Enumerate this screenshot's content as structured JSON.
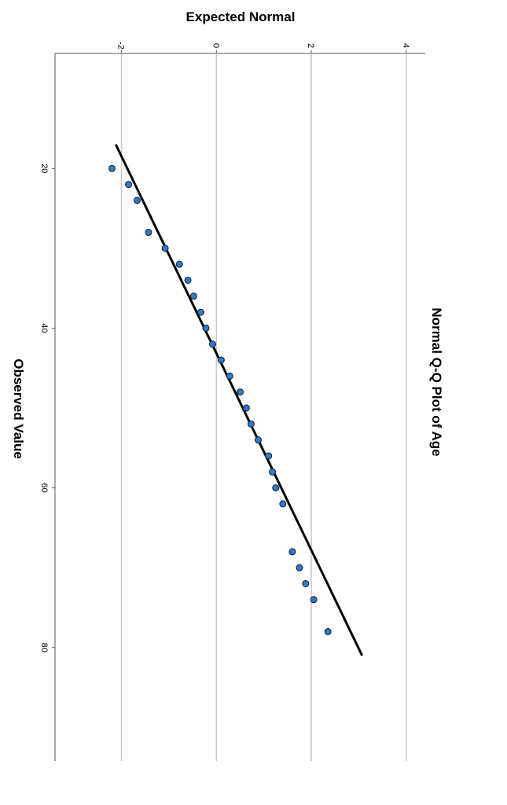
{
  "chart_data": {
    "type": "scatter",
    "title": "Normal Q-Q Plot of Age",
    "xlabel": "Observed Value",
    "ylabel": "Expected Normal",
    "x_ticks": [
      "20",
      "40",
      "60",
      "80"
    ],
    "y_ticks": [
      "-2",
      "0",
      "2",
      "4"
    ],
    "xlim": [
      5.6,
      94.2
    ],
    "ylim": [
      -3.4,
      4.4
    ],
    "grid": "horizontal",
    "rotated": "90deg-clockwise",
    "point_color": "#2b7bd0",
    "line_color": "#000000",
    "points": [
      {
        "x": 20,
        "y": -2.2
      },
      {
        "x": 22,
        "y": -1.85
      },
      {
        "x": 24,
        "y": -1.67
      },
      {
        "x": 28,
        "y": -1.43
      },
      {
        "x": 30,
        "y": -1.08
      },
      {
        "x": 32,
        "y": -0.78
      },
      {
        "x": 34,
        "y": -0.6
      },
      {
        "x": 36,
        "y": -0.48
      },
      {
        "x": 38,
        "y": -0.33
      },
      {
        "x": 40,
        "y": -0.22
      },
      {
        "x": 42,
        "y": -0.08
      },
      {
        "x": 44,
        "y": 0.1
      },
      {
        "x": 46,
        "y": 0.28
      },
      {
        "x": 48,
        "y": 0.5
      },
      {
        "x": 50,
        "y": 0.63
      },
      {
        "x": 52,
        "y": 0.73
      },
      {
        "x": 54,
        "y": 0.88
      },
      {
        "x": 56,
        "y": 1.1
      },
      {
        "x": 58,
        "y": 1.18
      },
      {
        "x": 60,
        "y": 1.25
      },
      {
        "x": 62,
        "y": 1.4
      },
      {
        "x": 68,
        "y": 1.6
      },
      {
        "x": 70,
        "y": 1.75
      },
      {
        "x": 72,
        "y": 1.88
      },
      {
        "x": 74,
        "y": 2.05
      },
      {
        "x": 78,
        "y": 2.35
      }
    ],
    "reference_line": [
      {
        "x": 17,
        "y": -2.12
      },
      {
        "x": 81,
        "y": 3.07
      }
    ]
  }
}
